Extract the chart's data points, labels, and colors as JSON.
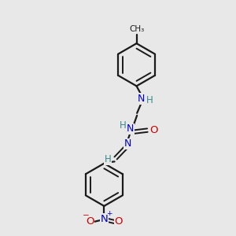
{
  "bg_color": "#e8e8e8",
  "bond_color": "#1a1a1a",
  "N_color": "#0000cc",
  "O_color": "#cc0000",
  "H_color": "#3a8a8a",
  "figsize": [
    3.0,
    3.0
  ],
  "dpi": 100,
  "xlim": [
    0,
    10
  ],
  "ylim": [
    0,
    10
  ]
}
